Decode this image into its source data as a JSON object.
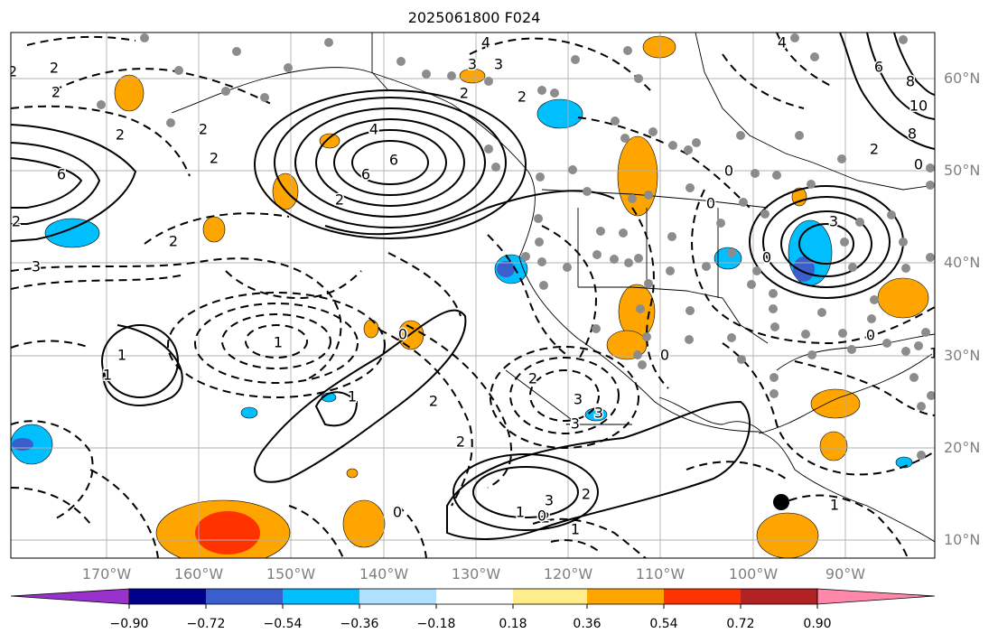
{
  "title": "2025061800 F024",
  "map": {
    "lon_range": [
      -178,
      -78
    ],
    "lat_range": [
      8,
      65
    ],
    "lon_ticks": [
      "170°W",
      "160°W",
      "150°W",
      "140°W",
      "130°W",
      "120°W",
      "110°W",
      "100°W",
      "90°W"
    ],
    "lat_ticks": [
      "60°N",
      "50°N",
      "40°N",
      "30°N",
      "20°N",
      "10°N"
    ],
    "gridlines": true,
    "contour_labels": [
      "4",
      "6",
      "6",
      "2",
      "2",
      "2",
      "2",
      "2",
      "4",
      "4",
      "3",
      "3",
      "6",
      "6",
      "8",
      "10",
      "8",
      "2",
      "0",
      "0",
      "0",
      "0",
      "0",
      "0",
      "0",
      "1",
      "1",
      "1",
      "1",
      "1",
      "3",
      "3",
      "3",
      "3",
      "2",
      "2",
      "2",
      "2",
      "2",
      "2",
      "2",
      "2",
      "-3",
      "3",
      "1",
      "2",
      "2",
      "2",
      "1",
      "0",
      "1",
      "0"
    ],
    "markers": {
      "gray_circle_color": "#8c8c8c",
      "black_circle_color": "#000000"
    }
  },
  "colorbar": {
    "labels": [
      "−0.90",
      "−0.72",
      "−0.54",
      "−0.36",
      "−0.18",
      "0.18",
      "0.36",
      "0.54",
      "0.72",
      "0.90"
    ],
    "colors": [
      "#9932cc",
      "#00008b",
      "#3a5fcd",
      "#00bfff",
      "#b0e0ff",
      "#ffffff",
      "#ffec8b",
      "#ffa500",
      "#ff3300",
      "#b22222",
      "#ff88aa"
    ]
  }
}
